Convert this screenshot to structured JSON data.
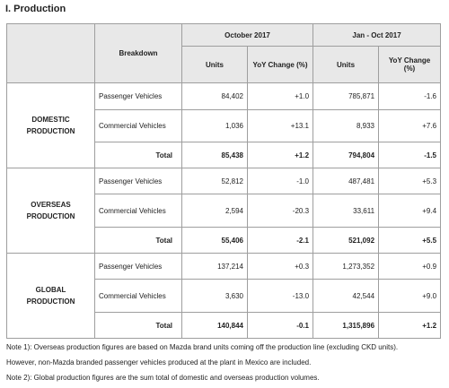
{
  "title": "I. Production",
  "header": {
    "breakdown": "Breakdown",
    "period1": "October 2017",
    "period2": "Jan - Oct 2017",
    "units": "Units",
    "yoy": "YoY Change (%)"
  },
  "total_label": "Total",
  "sections": [
    {
      "group_line1": "DOMESTIC",
      "group_line2": "PRODUCTION",
      "rows": [
        {
          "label": "Passenger Vehicles",
          "oct_units": "84,402",
          "oct_yoy": "+1.0",
          "ytd_units": "785,871",
          "ytd_yoy": "-1.6"
        },
        {
          "label": "Commercial Vehicles",
          "oct_units": "1,036",
          "oct_yoy": "+13.1",
          "ytd_units": "8,933",
          "ytd_yoy": "+7.6"
        }
      ],
      "total": {
        "oct_units": "85,438",
        "oct_yoy": "+1.2",
        "ytd_units": "794,804",
        "ytd_yoy": "-1.5"
      }
    },
    {
      "group_line1": "OVERSEAS",
      "group_line2": "PRODUCTION",
      "rows": [
        {
          "label": "Passenger Vehicles",
          "oct_units": "52,812",
          "oct_yoy": "-1.0",
          "ytd_units": "487,481",
          "ytd_yoy": "+5.3"
        },
        {
          "label": "Commercial Vehicles",
          "oct_units": "2,594",
          "oct_yoy": "-20.3",
          "ytd_units": "33,611",
          "ytd_yoy": "+9.4"
        }
      ],
      "total": {
        "oct_units": "55,406",
        "oct_yoy": "-2.1",
        "ytd_units": "521,092",
        "ytd_yoy": "+5.5"
      }
    },
    {
      "group_line1": "GLOBAL",
      "group_line2": "PRODUCTION",
      "rows": [
        {
          "label": "Passenger Vehicles",
          "oct_units": "137,214",
          "oct_yoy": "+0.3",
          "ytd_units": "1,273,352",
          "ytd_yoy": "+0.9"
        },
        {
          "label": "Commercial Vehicles",
          "oct_units": "3,630",
          "oct_yoy": "-13.0",
          "ytd_units": "42,544",
          "ytd_yoy": "+9.0"
        }
      ],
      "total": {
        "oct_units": "140,844",
        "oct_yoy": "-0.1",
        "ytd_units": "1,315,896",
        "ytd_yoy": "+1.2"
      }
    }
  ],
  "notes": [
    "Note 1): Overseas production figures are based on Mazda brand units coming off the production line (excluding CKD units).",
    "However, non-Mazda branded passenger vehicles produced at the plant in Mexico are included.",
    "Note 2): Global production figures are the sum total of domestic and overseas production volumes."
  ]
}
